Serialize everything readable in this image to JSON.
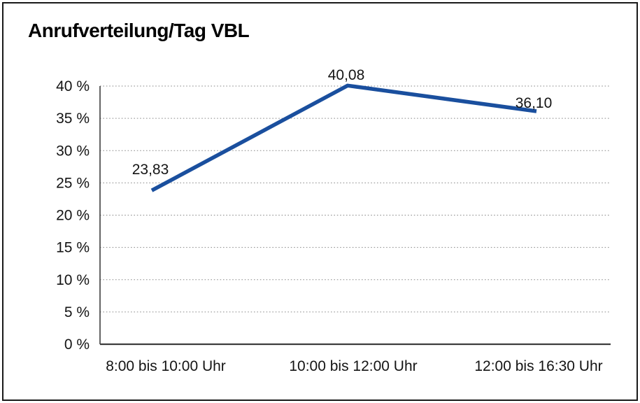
{
  "chart_data": {
    "type": "line",
    "title": "Anrufverteilung/Tag VBL",
    "categories": [
      "8:00 bis 10:00 Uhr",
      "10:00 bis 12:00 Uhr",
      "12:00 bis 16:30 Uhr"
    ],
    "values": [
      23.83,
      40.08,
      36.1
    ],
    "point_labels": [
      "23,83",
      "40,08",
      "36,10"
    ],
    "xlabel": "",
    "ylabel": "",
    "ylim": [
      0,
      40
    ],
    "y_tick_step": 5,
    "y_ticks": [
      "0 %",
      "5 %",
      "10 %",
      "15 %",
      "20 %",
      "25 %",
      "30 %",
      "35 %",
      "40 %"
    ],
    "grid": "horizontal-dotted",
    "legend": "none",
    "line_color": "#1a4f9e",
    "grid_color": "#8a8a8a",
    "axis_color": "#3d3d3d",
    "text_color": "#141414",
    "frame_color": "#1a1a1a",
    "background": "#ffffff"
  }
}
